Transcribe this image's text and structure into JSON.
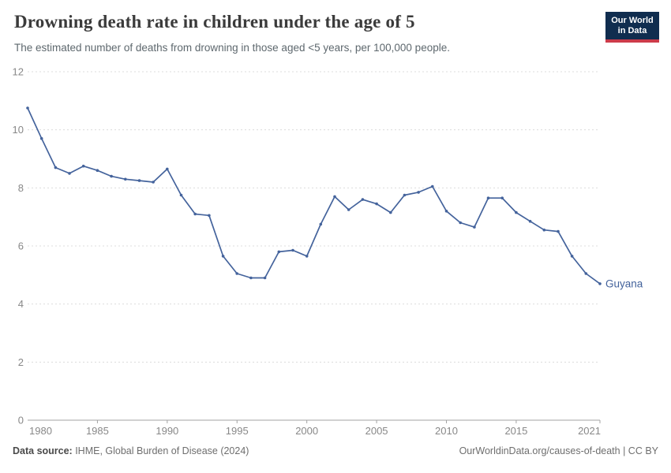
{
  "header": {
    "title": "Drowning death rate in children under the age of 5",
    "subtitle": "The estimated number of deaths from drowning in those aged <5 years, per 100,000 people.",
    "logo": {
      "line1": "Our World",
      "line2": "in Data",
      "bg_color": "#102d4f",
      "bar_color": "#cc3b4a"
    }
  },
  "chart_data": {
    "type": "line",
    "title": "Drowning death rate in children under the age of 5",
    "xlabel": "",
    "ylabel": "",
    "xlim": [
      1980,
      2021
    ],
    "ylim": [
      0,
      12
    ],
    "yticks": [
      0,
      2,
      4,
      6,
      8,
      10,
      12
    ],
    "xticks": [
      1980,
      1985,
      1990,
      1995,
      2000,
      2005,
      2010,
      2015,
      2021
    ],
    "grid": "horizontal-dashed",
    "legend_position": "end-of-line-label",
    "colors": {
      "gridline": "#dcdcdc",
      "axis": "#a3a3a3",
      "tick_label": "#888888"
    },
    "series": [
      {
        "name": "Guyana",
        "color": "#44639c",
        "x": [
          1980,
          1981,
          1982,
          1983,
          1984,
          1985,
          1986,
          1987,
          1988,
          1989,
          1990,
          1991,
          1992,
          1993,
          1994,
          1995,
          1996,
          1997,
          1998,
          1999,
          2000,
          2001,
          2002,
          2003,
          2004,
          2005,
          2006,
          2007,
          2008,
          2009,
          2010,
          2011,
          2012,
          2013,
          2014,
          2015,
          2016,
          2017,
          2018,
          2019,
          2020,
          2021
        ],
        "values": [
          10.75,
          9.7,
          8.7,
          8.5,
          8.75,
          8.6,
          8.4,
          8.3,
          8.25,
          8.2,
          8.65,
          7.75,
          7.1,
          7.05,
          5.65,
          5.05,
          4.9,
          4.9,
          5.8,
          5.85,
          5.65,
          6.75,
          7.7,
          7.25,
          7.6,
          7.45,
          7.15,
          7.75,
          7.85,
          8.05,
          7.2,
          6.8,
          6.65,
          7.65,
          7.65,
          7.15,
          6.85,
          6.55,
          6.5,
          5.65,
          5.05,
          4.7
        ]
      }
    ]
  },
  "footer": {
    "source_label": "Data source:",
    "source_text": " IHME, Global Burden of Disease (2024)",
    "link_text": "OurWorldinData.org/causes-of-death | CC BY"
  }
}
